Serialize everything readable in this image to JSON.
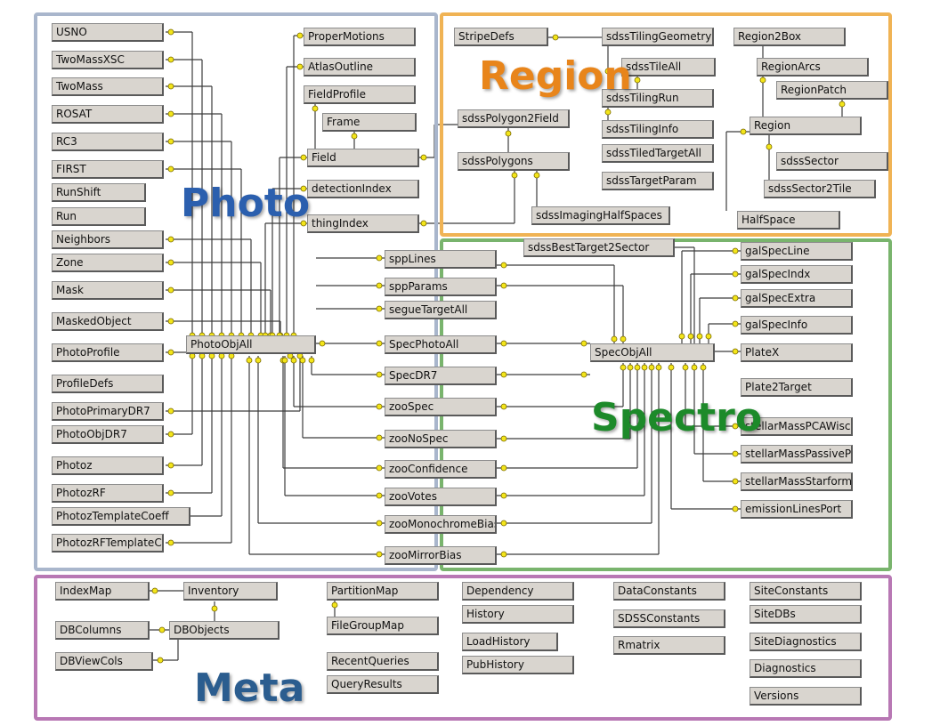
{
  "groups": {
    "photo": {
      "label": "Photo",
      "color": "#a9b6cc",
      "label_color": "#2b5fae"
    },
    "region": {
      "label": "Region",
      "color": "#f0b354",
      "label_color": "#e8851b"
    },
    "spectro": {
      "label": "Spectro",
      "color": "#79b46d",
      "label_color": "#1d8a2a"
    },
    "meta": {
      "label": "Meta",
      "color": "#b878b4",
      "label_color": "#2b5d8f"
    }
  },
  "tables": {
    "photo_left": [
      "USNO",
      "TwoMassXSC",
      "TwoMass",
      "ROSAT",
      "RC3",
      "FIRST",
      "RunShift",
      "Run",
      "Neighbors",
      "Zone",
      "Mask",
      "MaskedObject",
      "PhotoProfile",
      "ProfileDefs",
      "PhotoPrimaryDR7",
      "PhotoObjDR7",
      "Photoz",
      "PhotozRF",
      "PhotozTemplateCoeff",
      "PhotozRFTemplateCo"
    ],
    "photo_right": [
      "ProperMotions",
      "AtlasOutline",
      "FieldProfile",
      "Frame",
      "Field",
      "detectionIndex",
      "thingIndex"
    ],
    "photo_center": "PhotoObjAll",
    "region": [
      "StripeDefs",
      "sdssTilingGeometry",
      "sdssTileAll",
      "sdssTilingRun",
      "sdssPolygon2Field",
      "sdssTilingInfo",
      "sdssPolygons",
      "sdssTiledTargetAll",
      "sdssTargetParam",
      "sdssImagingHalfSpaces",
      "Region2Box",
      "RegionArcs",
      "RegionPatch",
      "Region",
      "sdssSector",
      "sdssSector2Tile",
      "HalfSpace"
    ],
    "spectro_mid": [
      "sdssBestTarget2Sector",
      "sppLines",
      "sppParams",
      "segueTargetAll",
      "SpecPhotoAll",
      "SpecDR7",
      "zooSpec",
      "zooNoSpec",
      "zooConfidence",
      "zooVotes",
      "zooMonochromeBias",
      "zooMirrorBias"
    ],
    "spectro_center": "SpecObjAll",
    "spectro_right": [
      "galSpecLine",
      "galSpecIndx",
      "galSpecExtra",
      "galSpecInfo",
      "PlateX",
      "Plate2Target",
      "stellarMassPCAWisc",
      "stellarMassPassiveP",
      "stellarMassStarform",
      "emissionLinesPort"
    ],
    "meta": [
      "IndexMap",
      "Inventory",
      "DBColumns",
      "DBObjects",
      "DBViewCols",
      "PartitionMap",
      "FileGroupMap",
      "RecentQueries",
      "QueryResults",
      "Dependency",
      "History",
      "LoadHistory",
      "PubHistory",
      "DataConstants",
      "SDSSConstants",
      "Rmatrix",
      "SiteConstants",
      "SiteDBs",
      "SiteDiagnostics",
      "Diagnostics",
      "Versions"
    ]
  }
}
